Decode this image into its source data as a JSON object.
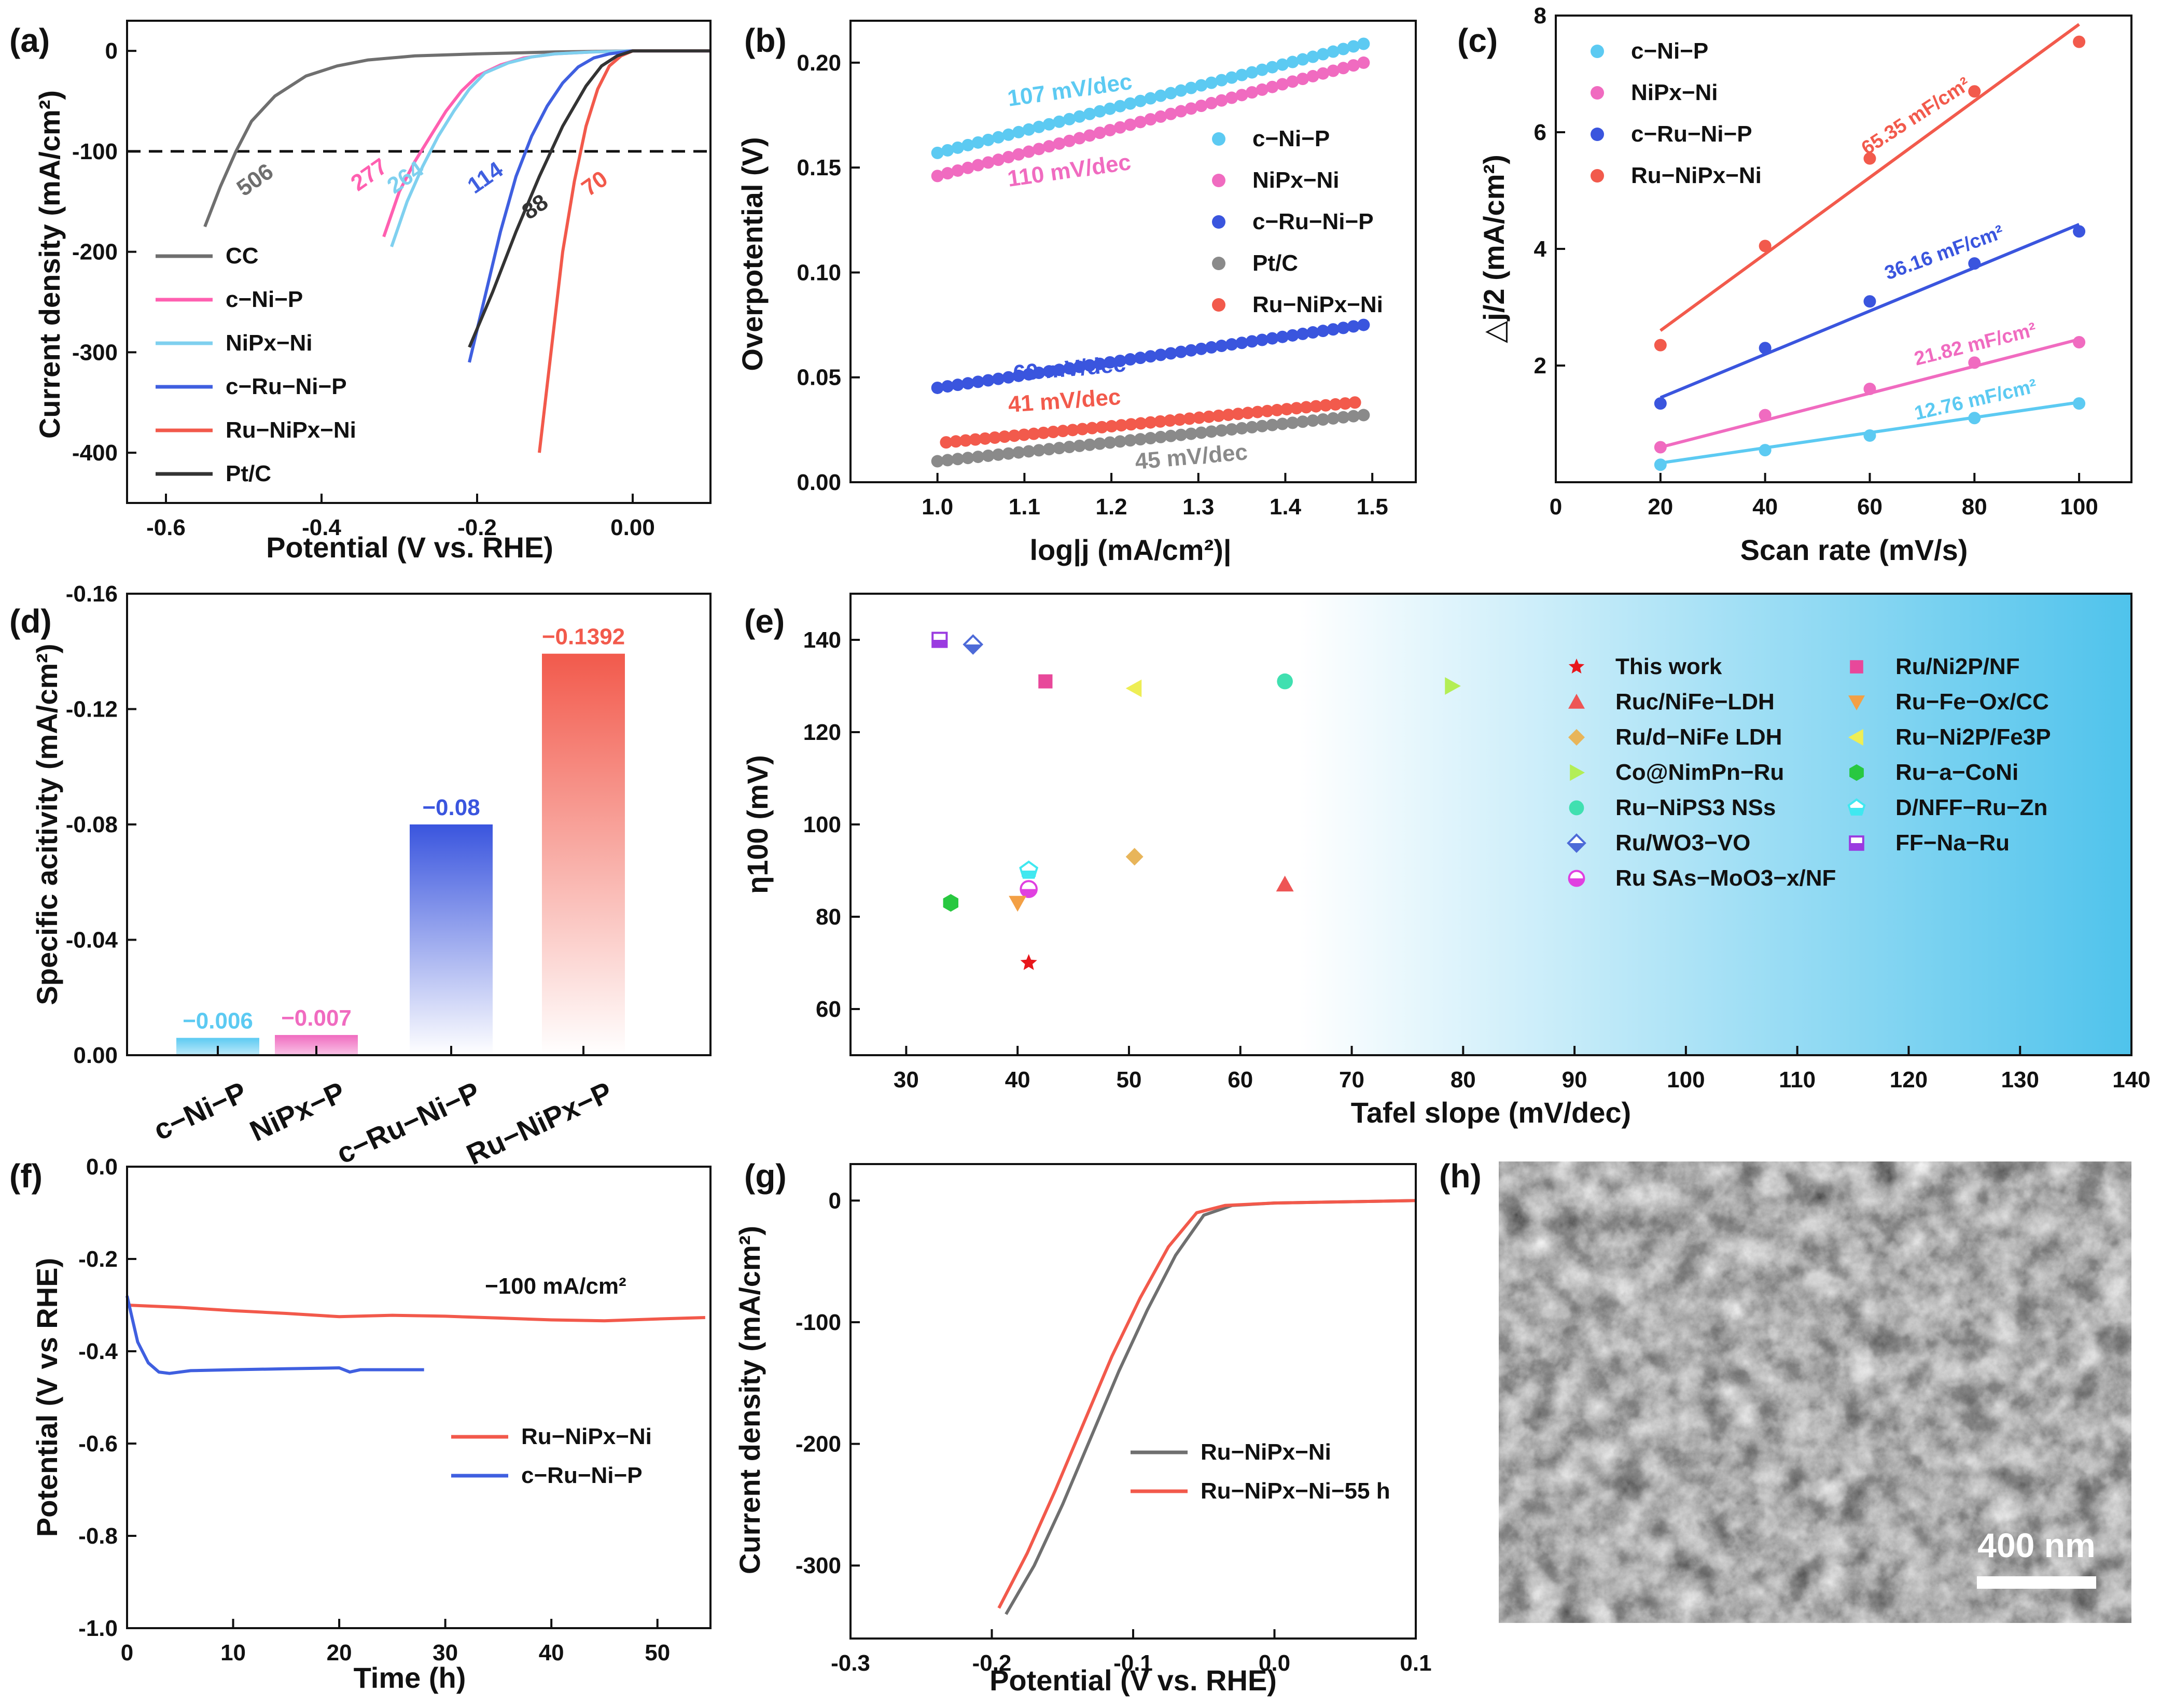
{
  "figure": {
    "panel_labels": [
      "(a)",
      "(b)",
      "(c)",
      "(d)",
      "(e)",
      "(f)",
      "(g)",
      "(h)"
    ],
    "colors": {
      "CC": "#6f6f6f",
      "cNiP": "#ff5fb0",
      "NiPxNi": "#7fd0ef",
      "cRuNiP": "#3f5fe0",
      "RuNiPxNi": "#f2594b",
      "PtC": "#333333",
      "cyan": "#5ccaf2",
      "pink": "#f06bc0",
      "blue": "#3a55de",
      "red": "#f25a4c",
      "grey": "#8a8a8a"
    }
  },
  "chart_data": [
    {
      "id": "a",
      "type": "line",
      "xlabel": "Potential (V vs. RHE)",
      "ylabel": "Current density (mA/cm²)",
      "xlim": [
        -0.65,
        0.1
      ],
      "ylim": [
        -450,
        30
      ],
      "xticks": [
        "-0.6",
        "-0.4",
        "-0.2",
        "0.00"
      ],
      "xtick_values": [
        -0.6,
        -0.4,
        -0.2,
        0.0
      ],
      "yticks": [
        "0",
        "-100",
        "-200",
        "-300",
        "-400"
      ],
      "ytick_values": [
        0,
        -100,
        -200,
        -300,
        -400
      ],
      "reference_line": -100,
      "series": [
        {
          "name": "CC",
          "color": "#6f6f6f",
          "x": [
            -0.55,
            -0.53,
            -0.51,
            -0.49,
            -0.46,
            -0.42,
            -0.38,
            -0.34,
            -0.28,
            -0.2,
            -0.1,
            0.0,
            0.1
          ],
          "y": [
            -175,
            -135,
            -100,
            -70,
            -45,
            -25,
            -15,
            -9,
            -5,
            -3,
            -1,
            0,
            0
          ]
        },
        {
          "name": "c-Ni-P",
          "color": "#ff5fb0",
          "x": [
            -0.32,
            -0.3,
            -0.28,
            -0.26,
            -0.24,
            -0.22,
            -0.2,
            -0.17,
            -0.14,
            -0.1,
            -0.05,
            0.0,
            0.1
          ],
          "y": [
            -185,
            -140,
            -110,
            -85,
            -60,
            -40,
            -25,
            -14,
            -7,
            -3,
            -1,
            0,
            0
          ]
        },
        {
          "name": "NiPx-Ni",
          "color": "#7fd0ef",
          "x": [
            -0.31,
            -0.29,
            -0.27,
            -0.25,
            -0.23,
            -0.21,
            -0.19,
            -0.16,
            -0.13,
            -0.1,
            -0.05,
            0.0,
            0.1
          ],
          "y": [
            -195,
            -150,
            -115,
            -85,
            -60,
            -38,
            -22,
            -12,
            -6,
            -3,
            -1,
            0,
            0
          ]
        },
        {
          "name": "c-Ru-Ni-P",
          "color": "#3f5fe0",
          "x": [
            -0.21,
            -0.19,
            -0.17,
            -0.15,
            -0.13,
            -0.11,
            -0.09,
            -0.07,
            -0.05,
            -0.03,
            0.0,
            0.05,
            0.1
          ],
          "y": [
            -310,
            -245,
            -180,
            -125,
            -85,
            -55,
            -32,
            -16,
            -7,
            -3,
            0,
            0,
            0
          ]
        },
        {
          "name": "Ru-NiPx-Ni",
          "color": "#f2594b",
          "x": [
            -0.12,
            -0.105,
            -0.09,
            -0.075,
            -0.06,
            -0.045,
            -0.03,
            -0.015,
            0.0,
            0.05,
            0.1
          ],
          "y": [
            -400,
            -300,
            -200,
            -130,
            -75,
            -38,
            -15,
            -5,
            0,
            0,
            0
          ]
        },
        {
          "name": "Pt/C",
          "color": "#333333",
          "x": [
            -0.21,
            -0.18,
            -0.15,
            -0.12,
            -0.09,
            -0.06,
            -0.04,
            -0.02,
            0.0,
            0.05,
            0.1
          ],
          "y": [
            -295,
            -240,
            -180,
            -125,
            -75,
            -35,
            -15,
            -5,
            0,
            0,
            0
          ]
        }
      ],
      "annotations": [
        {
          "text": "506",
          "color": "#6f6f6f"
        },
        {
          "text": "277",
          "color": "#ff5fb0"
        },
        {
          "text": "264",
          "color": "#7fd0ef"
        },
        {
          "text": "114",
          "color": "#3f5fe0"
        },
        {
          "text": "88",
          "color": "#333333"
        },
        {
          "text": "70",
          "color": "#f2594b"
        }
      ],
      "legend_labels": [
        "CC",
        "c−Ni−P",
        "NiPx−Ni",
        "c−Ru−Ni−P",
        "Ru−NiPx−Ni",
        "Pt/C"
      ]
    },
    {
      "id": "b",
      "type": "scatter",
      "xlabel": "log|j (mA/cm²)|",
      "ylabel": "Overpotential (V)",
      "xlim": [
        0.9,
        1.55
      ],
      "ylim": [
        0,
        0.22
      ],
      "xticks": [
        "1.0",
        "1.1",
        "1.2",
        "1.3",
        "1.4",
        "1.5"
      ],
      "xtick_values": [
        1.0,
        1.1,
        1.2,
        1.3,
        1.4,
        1.5
      ],
      "yticks": [
        "0.00",
        "0.05",
        "0.10",
        "0.15",
        "0.20"
      ],
      "ytick_values": [
        0.0,
        0.05,
        0.1,
        0.15,
        0.2
      ],
      "series": [
        {
          "name": "c-Ni-P",
          "color": "#5ccaf2",
          "x0": 1.0,
          "x1": 1.49,
          "y0": 0.157,
          "y1": 0.209,
          "slope_label": "107 mV/dec"
        },
        {
          "name": "NiPx-Ni",
          "color": "#f06bc0",
          "x0": 1.0,
          "x1": 1.49,
          "y0": 0.146,
          "y1": 0.2,
          "slope_label": "110 mV/dec"
        },
        {
          "name": "c-Ru-Ni-P",
          "color": "#3a55de",
          "x0": 1.0,
          "x1": 1.49,
          "y0": 0.045,
          "y1": 0.075,
          "slope_label": "60 mV/dec"
        },
        {
          "name": "Pt/C",
          "color": "#8a8a8a",
          "x0": 1.0,
          "x1": 1.49,
          "y0": 0.01,
          "y1": 0.032,
          "slope_label": "45 mV/dec"
        },
        {
          "name": "Ru-NiPx-Ni",
          "color": "#f25a4c",
          "x0": 1.01,
          "x1": 1.48,
          "y0": 0.019,
          "y1": 0.038,
          "slope_label": "41 mV/dec"
        }
      ],
      "legend_labels": [
        "c−Ni−P",
        "NiPx−Ni",
        "c−Ru−Ni−P",
        "Pt/C",
        "Ru−NiPx−Ni"
      ]
    },
    {
      "id": "c",
      "type": "scatter",
      "xlabel": "Scan rate (mV/s)",
      "ylabel": "△j/2 (mA/cm²)",
      "xlim": [
        0,
        110
      ],
      "ylim": [
        0,
        8
      ],
      "xticks": [
        "0",
        "20",
        "40",
        "60",
        "80",
        "100"
      ],
      "xtick_values": [
        0,
        20,
        40,
        60,
        80,
        100
      ],
      "yticks": [
        "2",
        "4",
        "6",
        "8"
      ],
      "ytick_values": [
        2,
        4,
        6,
        8
      ],
      "x": [
        20,
        40,
        60,
        80,
        100
      ],
      "series": [
        {
          "name": "c-Ni-P",
          "color": "#5ccaf2",
          "values": [
            0.3,
            0.55,
            0.8,
            1.1,
            1.35
          ],
          "fit": [
            0.33,
            1.37
          ],
          "label": "12.76 mF/cm²"
        },
        {
          "name": "NiPx-Ni",
          "color": "#f06bc0",
          "values": [
            0.6,
            1.15,
            1.6,
            2.05,
            2.4
          ],
          "fit": [
            0.6,
            2.45
          ],
          "label": "21.82 mF/cm²"
        },
        {
          "name": "c-Ru-Ni-P",
          "color": "#3a55de",
          "values": [
            1.35,
            2.3,
            3.1,
            3.75,
            4.3
          ],
          "fit": [
            1.45,
            4.42
          ],
          "label": "36.16 mF/cm²"
        },
        {
          "name": "Ru-NiPx-Ni",
          "color": "#f25a4c",
          "values": [
            2.35,
            4.05,
            5.55,
            6.7,
            7.55
          ],
          "fit": [
            2.6,
            7.85
          ],
          "label": "65.35 mF/cm²"
        }
      ],
      "legend_labels": [
        "c−Ni−P",
        "NiPx−Ni",
        "c−Ru−Ni−P",
        "Ru−NiPx−Ni"
      ]
    },
    {
      "id": "d",
      "type": "bar",
      "ylabel": "Specific acitivity (mA/cm²)",
      "ylim": [
        0,
        -0.16
      ],
      "yticks": [
        "0.00",
        "-0.04",
        "-0.08",
        "-0.12",
        "-0.16"
      ],
      "ytick_values": [
        0,
        -0.04,
        -0.08,
        -0.12,
        -0.16
      ],
      "categories": [
        "c−Ni−P",
        "NiPx−P",
        "c−Ru−Ni−P",
        "Ru−NiPx−P"
      ],
      "values": [
        -0.006,
        -0.007,
        -0.08,
        -0.1392
      ],
      "value_labels": [
        "−0.006",
        "−0.007",
        "−0.08",
        "−0.1392"
      ],
      "colors": [
        "#5ccaf2",
        "#f06bc0",
        "#3a55de",
        "#f25a4c"
      ]
    },
    {
      "id": "e",
      "type": "scatter",
      "xlabel": "Tafel slope (mV/dec)",
      "ylabel": "η100 (mV)",
      "xlim": [
        25,
        140
      ],
      "ylim": [
        50,
        150
      ],
      "xticks": [
        "30",
        "40",
        "50",
        "60",
        "70",
        "80",
        "90",
        "100",
        "110",
        "120",
        "130",
        "140"
      ],
      "xtick_values": [
        30,
        40,
        50,
        60,
        70,
        80,
        90,
        100,
        110,
        120,
        130,
        140
      ],
      "yticks": [
        "60",
        "80",
        "100",
        "120",
        "140"
      ],
      "ytick_values": [
        60,
        80,
        100,
        120,
        140
      ],
      "points": [
        {
          "name": "This work",
          "x": 41,
          "y": 70,
          "color": "#e8161b",
          "marker": "star"
        },
        {
          "name": "Ruc/NiFe-LDH",
          "x": 64,
          "y": 87,
          "color": "#ee5555",
          "marker": "tri-up"
        },
        {
          "name": "Ru/d-NiFe LDH",
          "x": 50.5,
          "y": 93,
          "color": "#e8b55a",
          "marker": "diamond"
        },
        {
          "name": "Co@NimPn-Ru",
          "x": 79,
          "y": 130,
          "color": "#b3ee55",
          "marker": "tri-right"
        },
        {
          "name": "Ru-NiPS3 NSs",
          "x": 64,
          "y": 131,
          "color": "#40e0b0",
          "marker": "circle"
        },
        {
          "name": "Ru/WO3-VO",
          "x": 36,
          "y": 139,
          "color": "#4d6ad8",
          "marker": "diamond-half"
        },
        {
          "name": "Ru SAs-MoO3-x/NF",
          "x": 41,
          "y": 86,
          "color": "#e040e0",
          "marker": "circle-half"
        },
        {
          "name": "Ru/Ni2P/NF",
          "x": 42.5,
          "y": 131,
          "color": "#e8489a",
          "marker": "square"
        },
        {
          "name": "Ru-Fe-Ox/CC",
          "x": 40,
          "y": 83,
          "color": "#f3a045",
          "marker": "tri-down"
        },
        {
          "name": "Ru-Ni2P/Fe3P",
          "x": 50.5,
          "y": 129.5,
          "color": "#eeee55",
          "marker": "tri-left"
        },
        {
          "name": "Ru-a-CoNi",
          "x": 34,
          "y": 83,
          "color": "#28c840",
          "marker": "hexagon"
        },
        {
          "name": "D/NFF-Ru-Zn",
          "x": 41,
          "y": 90,
          "color": "#40e8f0",
          "marker": "pentagon"
        },
        {
          "name": "FF-Na-Ru",
          "x": 33,
          "y": 140,
          "color": "#9a3ae0",
          "marker": "square-half"
        }
      ],
      "legend_left": [
        "This work",
        "Ruc/NiFe−LDH",
        "Ru/d−NiFe LDH",
        "Co@NimPn−Ru",
        "Ru−NiPS3 NSs",
        "Ru/WO3−VO",
        "Ru SAs−MoO3−x/NF"
      ],
      "legend_right": [
        "Ru/Ni2P/NF",
        "Ru−Fe−Ox/CC",
        "Ru−Ni2P/Fe3P",
        "Ru−a−CoNi",
        "D/NFF−Ru−Zn",
        "FF−Na−Ru"
      ]
    },
    {
      "id": "f",
      "type": "line",
      "xlabel": "Time (h)",
      "ylabel": "Potential (V vs RHE)",
      "xlim": [
        0,
        55
      ],
      "ylim": [
        -1.0,
        0.0
      ],
      "xticks": [
        "0",
        "10",
        "20",
        "30",
        "40",
        "50"
      ],
      "xtick_values": [
        0,
        10,
        20,
        30,
        40,
        50
      ],
      "yticks": [
        "0.0",
        "-0.2",
        "-0.4",
        "-0.6",
        "-0.8",
        "-1.0"
      ],
      "ytick_values": [
        0,
        -0.2,
        -0.4,
        -0.6,
        -0.8,
        -1.0
      ],
      "annotation": "−100 mA/cm²",
      "series": [
        {
          "name": "Ru-NiPx-Ni",
          "color": "#f2594b",
          "x": [
            0,
            5,
            10,
            15,
            20,
            25,
            30,
            35,
            40,
            45,
            50,
            54.5
          ],
          "y": [
            -0.3,
            -0.305,
            -0.312,
            -0.318,
            -0.325,
            -0.322,
            -0.324,
            -0.328,
            -0.332,
            -0.334,
            -0.33,
            -0.327
          ]
        },
        {
          "name": "c-Ru-Ni-P",
          "color": "#3f5fe0",
          "x": [
            0,
            0.5,
            1,
            2,
            3,
            4,
            6,
            10,
            15,
            20,
            21,
            22,
            28
          ],
          "y": [
            -0.28,
            -0.33,
            -0.38,
            -0.425,
            -0.445,
            -0.448,
            -0.442,
            -0.44,
            -0.438,
            -0.436,
            -0.445,
            -0.44,
            -0.44
          ]
        }
      ],
      "legend_labels": [
        "Ru−NiPx−Ni",
        "c−Ru−Ni−P"
      ]
    },
    {
      "id": "g",
      "type": "line",
      "xlabel": "Potential (V vs. RHE)",
      "ylabel": "Current density (mA/cm²)",
      "xlim": [
        -0.3,
        0.1
      ],
      "ylim": [
        -360,
        30
      ],
      "xticks": [
        "-0.3",
        "-0.2",
        "-0.1",
        "0.0",
        "0.1"
      ],
      "xtick_values": [
        -0.3,
        -0.2,
        -0.1,
        0.0,
        0.1
      ],
      "yticks": [
        "0",
        "-100",
        "-200",
        "-300"
      ],
      "ytick_values": [
        0,
        -100,
        -200,
        -300
      ],
      "series": [
        {
          "name": "Ru-NiPx-Ni",
          "color": "#6f6f6f",
          "x": [
            -0.19,
            -0.17,
            -0.15,
            -0.13,
            -0.11,
            -0.09,
            -0.07,
            -0.05,
            -0.03,
            0.0,
            0.05,
            0.1
          ],
          "y": [
            -340,
            -300,
            -250,
            -195,
            -140,
            -90,
            -45,
            -12,
            -4,
            -2,
            -1,
            0
          ]
        },
        {
          "name": "Ru-NiPx-Ni-55 h",
          "color": "#f2594b",
          "x": [
            -0.195,
            -0.175,
            -0.155,
            -0.135,
            -0.115,
            -0.095,
            -0.075,
            -0.055,
            -0.035,
            0.0,
            0.05,
            0.1
          ],
          "y": [
            -335,
            -290,
            -238,
            -183,
            -128,
            -80,
            -38,
            -10,
            -4,
            -2,
            -1,
            0
          ]
        }
      ],
      "legend_labels": [
        "Ru−NiPx−Ni",
        "Ru−NiPx−Ni−55 h"
      ]
    }
  ],
  "sem": {
    "scale_label": "400 nm"
  }
}
